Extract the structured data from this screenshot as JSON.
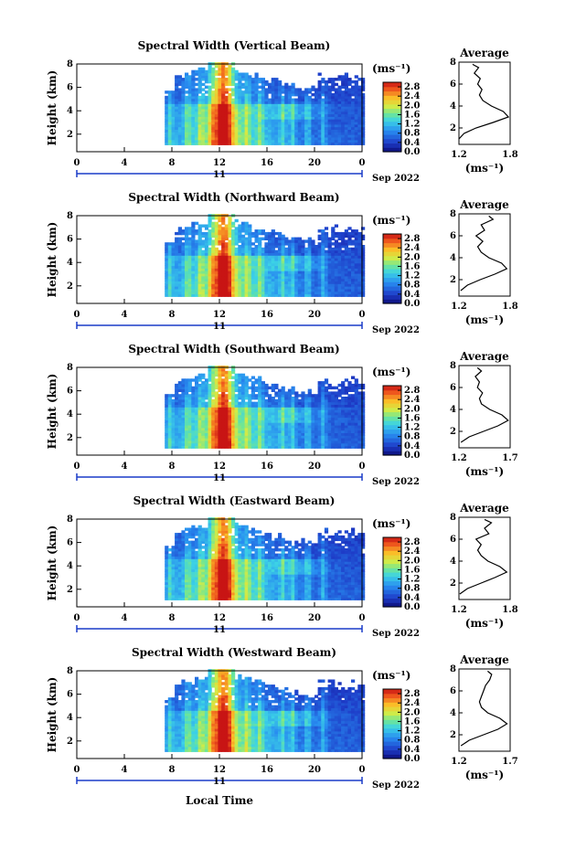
{
  "figure": {
    "bottom_xlabel": "Local Time"
  },
  "chart_data": [
    {
      "type": "heatmap",
      "title": "Spectral Width (Vertical Beam)",
      "ylabel": "Height (km)",
      "xlabel": "Local Time",
      "x_ticks": [
        "0",
        "4",
        "8",
        "12",
        "16",
        "20",
        "0"
      ],
      "y_ticks": [
        "2",
        "4",
        "6",
        "8"
      ],
      "xlim": [
        0,
        24
      ],
      "ylim": [
        0.5,
        8
      ],
      "day_label": "11",
      "month_year": "Sep 2022",
      "colorbar": {
        "unit": "(ms⁻¹)",
        "ticks": [
          "0.0",
          "0.4",
          "0.8",
          "1.2",
          "1.6",
          "2.0",
          "2.4",
          "2.8"
        ],
        "range": [
          0.0,
          3.0
        ]
      },
      "average_profile": {
        "title": "Average",
        "xlabel": "(ms⁻¹)",
        "x_ticks": [
          "1.2",
          "1.8"
        ],
        "xlim": [
          1.2,
          1.8
        ],
        "height_km": [
          1.0,
          1.5,
          2.0,
          2.5,
          3.0,
          3.5,
          4.0,
          4.5,
          5.0,
          5.5,
          6.0,
          6.5,
          7.0,
          7.5,
          7.8
        ],
        "values": [
          1.2,
          1.26,
          1.4,
          1.6,
          1.78,
          1.72,
          1.58,
          1.48,
          1.44,
          1.47,
          1.42,
          1.45,
          1.38,
          1.43,
          1.36
        ]
      }
    },
    {
      "type": "heatmap",
      "title": "Spectral Width (Northward Beam)",
      "ylabel": "Height (km)",
      "xlabel": "Local Time",
      "x_ticks": [
        "0",
        "4",
        "8",
        "12",
        "16",
        "20",
        "0"
      ],
      "y_ticks": [
        "2",
        "4",
        "6",
        "8"
      ],
      "xlim": [
        0,
        24
      ],
      "ylim": [
        0.5,
        8
      ],
      "day_label": "11",
      "month_year": "Sep 2022",
      "colorbar": {
        "unit": "(ms⁻¹)",
        "ticks": [
          "0.0",
          "0.4",
          "0.8",
          "1.2",
          "1.6",
          "2.0",
          "2.4",
          "2.8"
        ],
        "range": [
          0.0,
          3.0
        ]
      },
      "average_profile": {
        "title": "Average",
        "xlabel": "(ms⁻¹)",
        "x_ticks": [
          "1.2",
          "1.8"
        ],
        "xlim": [
          1.2,
          1.8
        ],
        "height_km": [
          1.0,
          1.5,
          2.0,
          2.5,
          3.0,
          3.5,
          4.0,
          4.5,
          5.0,
          5.5,
          6.0,
          6.5,
          7.0,
          7.5,
          7.8
        ],
        "values": [
          1.22,
          1.3,
          1.45,
          1.62,
          1.76,
          1.7,
          1.55,
          1.46,
          1.42,
          1.48,
          1.4,
          1.5,
          1.46,
          1.6,
          1.55
        ]
      }
    },
    {
      "type": "heatmap",
      "title": "Spectral Width (Southward Beam)",
      "ylabel": "Height (km)",
      "xlabel": "Local Time",
      "x_ticks": [
        "0",
        "4",
        "8",
        "12",
        "16",
        "20",
        "0"
      ],
      "y_ticks": [
        "2",
        "4",
        "6",
        "8"
      ],
      "xlim": [
        0,
        24
      ],
      "ylim": [
        0.5,
        8
      ],
      "day_label": "11",
      "month_year": "Sep 2022",
      "colorbar": {
        "unit": "(ms⁻¹)",
        "ticks": [
          "0.0",
          "0.4",
          "0.8",
          "1.2",
          "1.6",
          "2.0",
          "2.4",
          "2.8"
        ],
        "range": [
          0.0,
          3.0
        ]
      },
      "average_profile": {
        "title": "Average",
        "xlabel": "(ms⁻¹)",
        "x_ticks": [
          "1.2",
          "1.7"
        ],
        "xlim": [
          1.2,
          1.7
        ],
        "height_km": [
          1.0,
          1.5,
          2.0,
          2.5,
          3.0,
          3.5,
          4.0,
          4.5,
          5.0,
          5.5,
          6.0,
          6.5,
          7.0,
          7.5,
          7.8
        ],
        "values": [
          1.22,
          1.3,
          1.44,
          1.58,
          1.68,
          1.62,
          1.5,
          1.42,
          1.4,
          1.43,
          1.38,
          1.4,
          1.36,
          1.42,
          1.38
        ]
      }
    },
    {
      "type": "heatmap",
      "title": "Spectral Width (Eastward Beam)",
      "ylabel": "Height (km)",
      "xlabel": "Local Time",
      "x_ticks": [
        "0",
        "4",
        "8",
        "12",
        "16",
        "20",
        "0"
      ],
      "y_ticks": [
        "2",
        "4",
        "6",
        "8"
      ],
      "xlim": [
        0,
        24
      ],
      "ylim": [
        0.5,
        8
      ],
      "day_label": "11",
      "month_year": "Sep 2022",
      "colorbar": {
        "unit": "(ms⁻¹)",
        "ticks": [
          "0.0",
          "0.4",
          "0.8",
          "1.2",
          "1.6",
          "2.0",
          "2.4",
          "2.8"
        ],
        "range": [
          0.0,
          3.0
        ]
      },
      "average_profile": {
        "title": "Average",
        "xlabel": "(ms⁻¹)",
        "x_ticks": [
          "1.2",
          "1.8"
        ],
        "xlim": [
          1.2,
          1.8
        ],
        "height_km": [
          1.0,
          1.5,
          2.0,
          2.5,
          3.0,
          3.5,
          4.0,
          4.5,
          5.0,
          5.5,
          6.0,
          6.5,
          7.0,
          7.5,
          7.8
        ],
        "values": [
          1.21,
          1.3,
          1.46,
          1.62,
          1.76,
          1.68,
          1.54,
          1.46,
          1.42,
          1.46,
          1.4,
          1.55,
          1.5,
          1.58,
          1.5
        ]
      }
    },
    {
      "type": "heatmap",
      "title": "Spectral Width (Westward Beam)",
      "ylabel": "Height (km)",
      "xlabel": "Local Time",
      "x_ticks": [
        "0",
        "4",
        "8",
        "12",
        "16",
        "20",
        "0"
      ],
      "y_ticks": [
        "2",
        "4",
        "6",
        "8"
      ],
      "xlim": [
        0,
        24
      ],
      "ylim": [
        0.5,
        8
      ],
      "day_label": "11",
      "month_year": "Sep 2022",
      "colorbar": {
        "unit": "(ms⁻¹)",
        "ticks": [
          "0.0",
          "0.4",
          "0.8",
          "1.2",
          "1.6",
          "2.0",
          "2.4",
          "2.8"
        ],
        "range": [
          0.0,
          3.0
        ]
      },
      "average_profile": {
        "title": "Average",
        "xlabel": "(ms⁻¹)",
        "x_ticks": [
          "1.2",
          "1.7"
        ],
        "xlim": [
          1.2,
          1.7
        ],
        "height_km": [
          1.0,
          1.5,
          2.0,
          2.5,
          3.0,
          3.5,
          4.0,
          4.5,
          5.0,
          5.5,
          6.0,
          6.5,
          7.0,
          7.5,
          7.8
        ],
        "values": [
          1.22,
          1.3,
          1.44,
          1.58,
          1.67,
          1.6,
          1.48,
          1.42,
          1.4,
          1.42,
          1.44,
          1.46,
          1.5,
          1.52,
          1.48
        ]
      }
    }
  ]
}
